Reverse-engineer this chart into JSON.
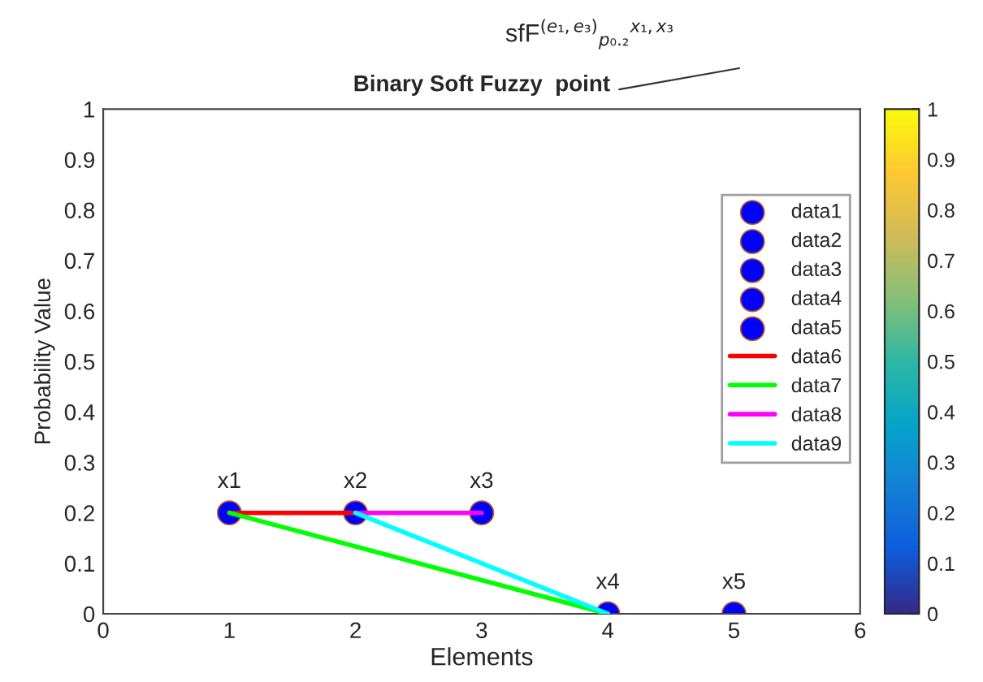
{
  "chart_data": {
    "type": "scatter",
    "title": "Binary Soft Fuzzy  point",
    "xlabel": "Elements",
    "ylabel": "Probability Value",
    "annotations": [
      "sfF$^{(e₁,e₃)}$$_{p₀.₂}$$^{x₁,x₃}$",
      {
        "text": "x1",
        "x": 1,
        "y": 0.2
      },
      {
        "text": "x2",
        "x": 2,
        "y": 0.2
      },
      {
        "text": "x3",
        "x": 3,
        "y": 0.2
      },
      {
        "text": "x4",
        "x": 4,
        "y": 0
      },
      {
        "text": "x5",
        "x": 5,
        "y": 0
      }
    ],
    "series": [
      {
        "name": "data1",
        "marker": "circle",
        "color": "#0000ff",
        "x": [
          1
        ],
        "values": [
          0.2
        ]
      },
      {
        "name": "data2",
        "marker": "circle",
        "color": "#0000ff",
        "x": [
          2
        ],
        "values": [
          0.2
        ]
      },
      {
        "name": "data3",
        "marker": "circle",
        "color": "#0000ff",
        "x": [
          3
        ],
        "values": [
          0.2
        ]
      },
      {
        "name": "data4",
        "marker": "circle",
        "color": "#0000ff",
        "x": [
          4
        ],
        "values": [
          0
        ]
      },
      {
        "name": "data5",
        "marker": "circle",
        "color": "#0000ff",
        "x": [
          5
        ],
        "values": [
          0
        ]
      },
      {
        "name": "data6",
        "type": "line",
        "color": "#ff0000",
        "x": [
          1,
          2
        ],
        "values": [
          0.2,
          0.2
        ]
      },
      {
        "name": "data7",
        "type": "line",
        "color": "#00ff00",
        "x": [
          1,
          4
        ],
        "values": [
          0.2,
          0
        ]
      },
      {
        "name": "data8",
        "type": "line",
        "color": "#ff00ff",
        "x": [
          2,
          3
        ],
        "values": [
          0.2,
          0.2
        ]
      },
      {
        "name": "data9",
        "type": "line",
        "color": "#00ffff",
        "x": [
          2,
          4
        ],
        "values": [
          0.2,
          0
        ]
      }
    ],
    "xlim": [
      0,
      6
    ],
    "xticks": [
      0,
      1,
      2,
      3,
      4,
      5,
      6
    ],
    "ylim": [
      0,
      1
    ],
    "yticks": [
      0,
      0.1,
      0.2,
      0.3,
      0.4,
      0.5,
      0.6,
      0.7,
      0.8,
      0.9,
      1
    ],
    "clim": [
      0,
      1
    ],
    "cticks": [
      0,
      0.1,
      0.2,
      0.3,
      0.4,
      0.5,
      0.6,
      0.7,
      0.8,
      0.9,
      1
    ],
    "grid": false,
    "legend": "top right"
  }
}
